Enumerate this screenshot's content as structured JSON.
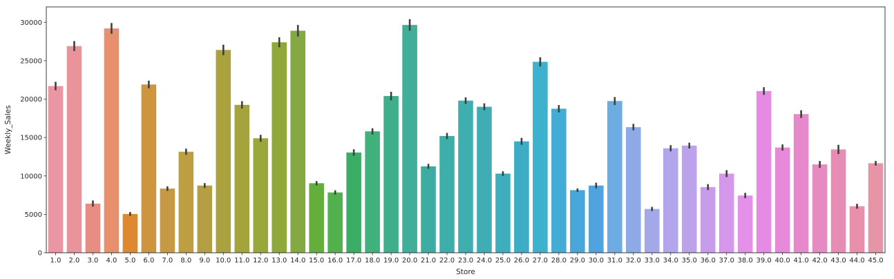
{
  "chart_data": {
    "type": "bar",
    "xlabel": "Store",
    "ylabel": "Weekly_Sales",
    "ylim": [
      0,
      32000
    ],
    "yticks": [
      0,
      5000,
      10000,
      15000,
      20000,
      25000,
      30000
    ],
    "grid": false,
    "error_bars": true,
    "categories": [
      "1.0",
      "2.0",
      "3.0",
      "4.0",
      "5.0",
      "6.0",
      "7.0",
      "8.0",
      "9.0",
      "10.0",
      "11.0",
      "12.0",
      "13.0",
      "14.0",
      "15.0",
      "16.0",
      "17.0",
      "18.0",
      "19.0",
      "20.0",
      "21.0",
      "22.0",
      "23.0",
      "24.0",
      "25.0",
      "26.0",
      "27.0",
      "28.0",
      "29.0",
      "30.0",
      "31.0",
      "32.0",
      "33.0",
      "34.0",
      "35.0",
      "36.0",
      "37.0",
      "38.0",
      "39.0",
      "40.0",
      "41.0",
      "42.0",
      "43.0",
      "44.0",
      "45.0"
    ],
    "values": [
      21700,
      26900,
      6400,
      29200,
      5050,
      21900,
      8350,
      13150,
      8750,
      26400,
      19250,
      14900,
      27400,
      28900,
      9050,
      7850,
      13050,
      15800,
      20400,
      29650,
      11250,
      15200,
      19800,
      19000,
      10300,
      14500,
      24850,
      18750,
      8150,
      8750,
      19750,
      16350,
      5700,
      13600,
      13950,
      8550,
      10300,
      7450,
      21050,
      13700,
      18050,
      11500,
      13450,
      6050,
      11650
    ],
    "errors": [
      550,
      650,
      400,
      700,
      250,
      500,
      300,
      400,
      320,
      680,
      480,
      450,
      650,
      750,
      280,
      280,
      420,
      400,
      550,
      750,
      320,
      400,
      430,
      450,
      300,
      450,
      600,
      480,
      230,
      370,
      520,
      420,
      270,
      400,
      380,
      380,
      450,
      350,
      500,
      400,
      500,
      450,
      600,
      320,
      300
    ],
    "colors": [
      "#ea96a3",
      "#e9939a",
      "#e78d84",
      "#e8906e",
      "#dc8932",
      "#cf953e",
      "#c69a45",
      "#bd9e40",
      "#b49f46",
      "#aba23f",
      "#a4a43c",
      "#9aa73a",
      "#8ea839",
      "#83aa42",
      "#64ae3b",
      "#50b14d",
      "#3aae67",
      "#40b17b",
      "#3eaf8a",
      "#40ae98",
      "#3eaca1",
      "#3daea9",
      "#3eafae",
      "#40adb4",
      "#3eaebc",
      "#3dacc5",
      "#3eb1cd",
      "#42acd4",
      "#48a7d9",
      "#50a3df",
      "#6cace2",
      "#8da9e6",
      "#a3a8e9",
      "#b2a5ec",
      "#bba2ea",
      "#c79ceb",
      "#d597ea",
      "#e390e8",
      "#e68be4",
      "#e789d9",
      "#e788cd",
      "#e68bc1",
      "#e68cb5",
      "#e88fab",
      "#e595a7"
    ]
  }
}
